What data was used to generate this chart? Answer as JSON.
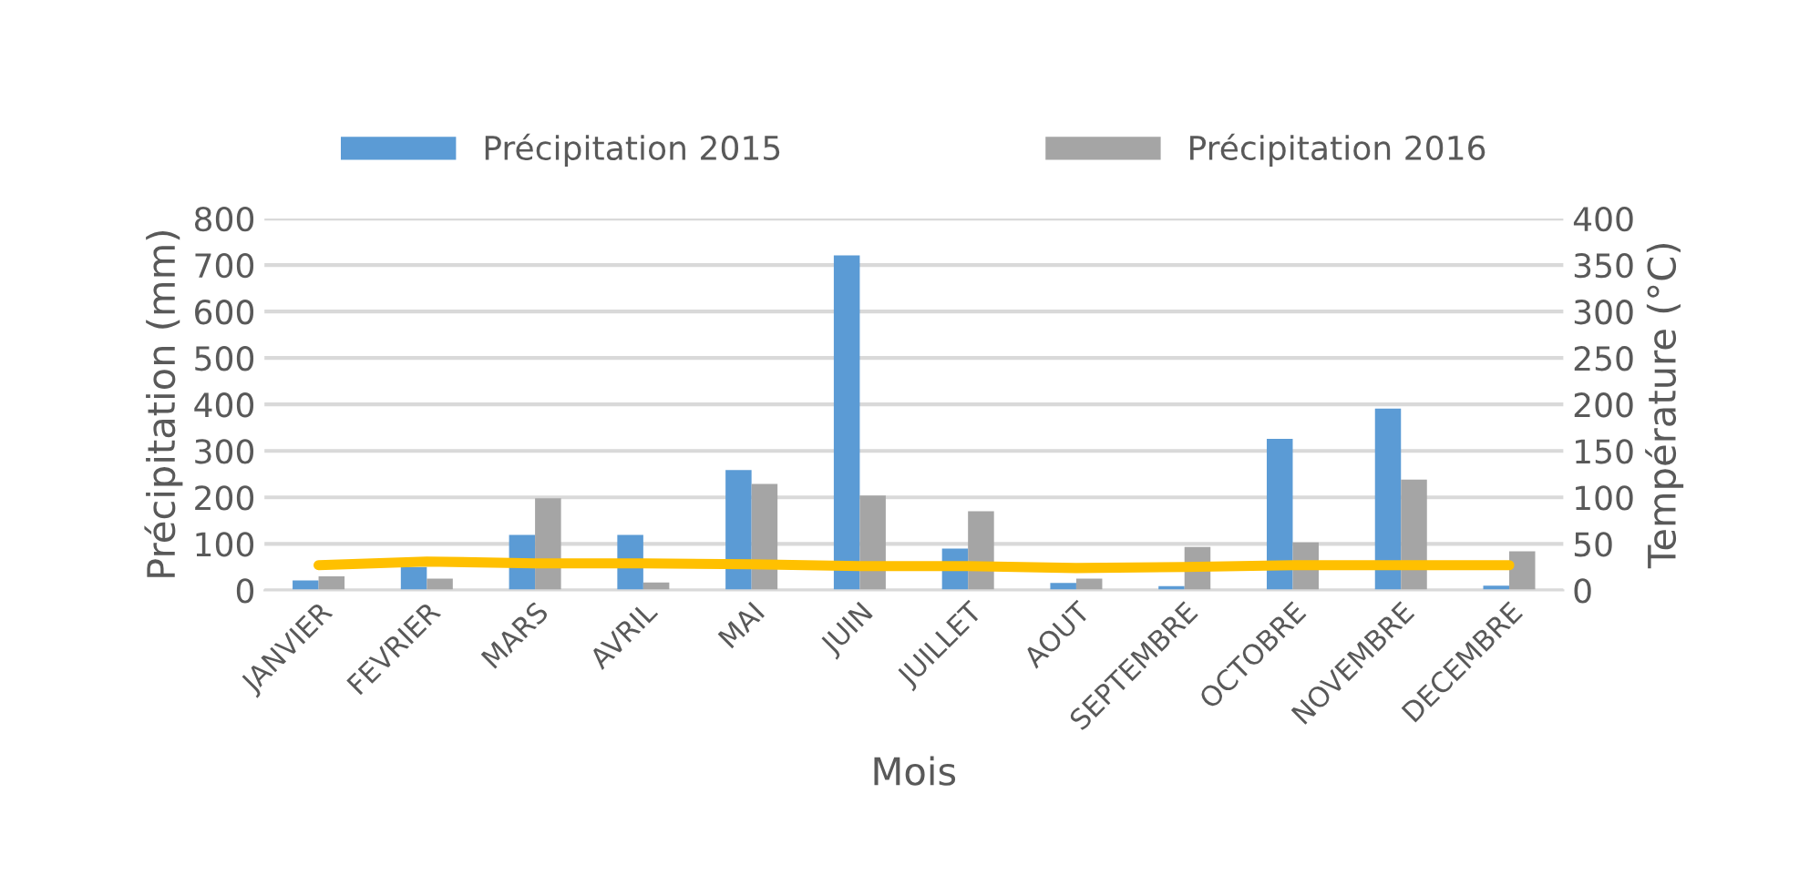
{
  "chart_data": {
    "type": "bar",
    "xlabel": "Mois",
    "ylabel": "Précipitation (mm)",
    "y2label": "Température (°C)",
    "categories": [
      "JANVIER",
      "FEVRIER",
      "MARS",
      "AVRIL",
      "MAI",
      "JUIN",
      "JUILLET",
      "AOUT",
      "SEPTEMBRE",
      "OCTOBRE",
      "NOVEMBRE",
      "DECEMBRE"
    ],
    "series": [
      {
        "name": "Précipitation 2015",
        "color": "#5b9bd5",
        "values": [
          21,
          50,
          119,
          119,
          259,
          721,
          90,
          16,
          9,
          326,
          391,
          10
        ]
      },
      {
        "name": "Précipitation 2016",
        "color": "#a5a5a5",
        "values": [
          30,
          25,
          198,
          17,
          229,
          204,
          170,
          25,
          93,
          103,
          238,
          84
        ]
      },
      {
        "type": "line",
        "axis": "y2",
        "color": "#ffc000",
        "values": [
          27,
          31,
          29,
          29,
          28,
          26,
          26,
          24,
          25,
          27,
          27,
          27
        ]
      }
    ],
    "ylim": [
      0,
      800
    ],
    "yticks": [
      0,
      100,
      200,
      300,
      400,
      500,
      600,
      700,
      800
    ],
    "y2lim": [
      0,
      400
    ],
    "y2ticks": [
      0,
      50,
      100,
      150,
      200,
      250,
      300,
      350,
      400
    ],
    "grid": "y",
    "legend": "top",
    "marker": "none",
    "line_style": "solid"
  }
}
